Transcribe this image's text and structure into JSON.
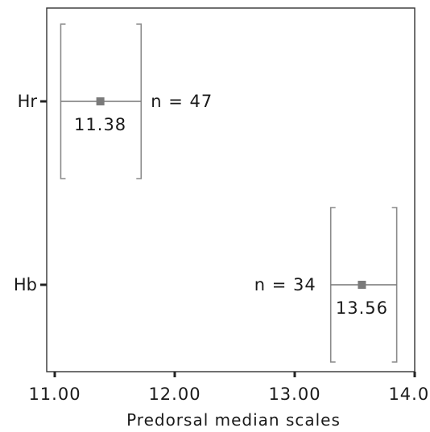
{
  "chart_data": {
    "type": "interval",
    "xlabel": "Predorsal median scales",
    "xlim": [
      11.0,
      14.0
    ],
    "xticks": [
      "11.00",
      "12.00",
      "13.00",
      "14.00"
    ],
    "categories": [
      "Hr",
      "Hb"
    ],
    "groups": [
      {
        "label": "Hr",
        "mean": 11.38,
        "mean_label": "11.38",
        "n_label": "n = 47",
        "ci": [
          11.05,
          11.72
        ],
        "range": [
          11.05,
          11.72
        ]
      },
      {
        "label": "Hb",
        "mean": 13.56,
        "mean_label": "13.56",
        "n_label": "n = 34",
        "ci": [
          13.3,
          13.85
        ],
        "range": [
          13.3,
          13.85
        ]
      }
    ]
  }
}
